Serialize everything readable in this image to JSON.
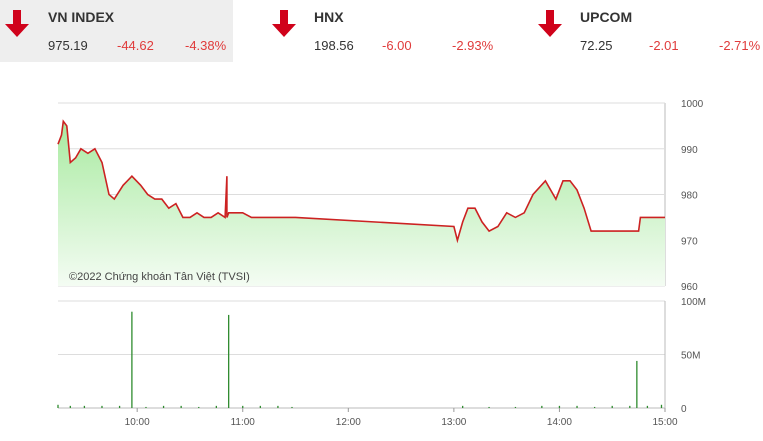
{
  "tickers": [
    {
      "name": "VN INDEX",
      "value": "975.19",
      "change": "-44.62",
      "percent": "-4.38%",
      "direction": "down",
      "active": true
    },
    {
      "name": "HNX",
      "value": "198.56",
      "change": "-6.00",
      "percent": "-2.93%",
      "direction": "down",
      "active": false
    },
    {
      "name": "UPCOM",
      "value": "72.25",
      "change": "-2.01",
      "percent": "-2.71%",
      "direction": "down",
      "active": false
    }
  ],
  "colors": {
    "down": "#d0021b",
    "line": "#cc2222",
    "fill_top": "#a8eaa0",
    "fill_bottom": "#f4fcf3",
    "volume": "#2e8b2e",
    "grid": "#dddddd"
  },
  "chart_data": [
    {
      "type": "area",
      "credit": "©2022 Chứng khoán Tân Việt (TVSI)",
      "ylim": [
        960,
        1000
      ],
      "yticks": [
        1000,
        990,
        980,
        970,
        960
      ],
      "x": [
        "09:15",
        "09:17",
        "09:18",
        "09:20",
        "09:22",
        "09:25",
        "09:28",
        "09:32",
        "09:36",
        "09:40",
        "09:44",
        "09:47",
        "09:52",
        "09:57",
        "10:02",
        "10:06",
        "10:10",
        "10:14",
        "10:18",
        "10:22",
        "10:26",
        "10:30",
        "10:34",
        "10:38",
        "10:42",
        "10:46",
        "10:50",
        "10:51",
        "10:51",
        "10:52",
        "10:55",
        "11:00",
        "11:05",
        "11:10",
        "11:20",
        "11:30",
        "13:00",
        "13:02",
        "13:05",
        "13:08",
        "13:12",
        "13:16",
        "13:20",
        "13:25",
        "13:30",
        "13:35",
        "13:40",
        "13:45",
        "13:52",
        "13:58",
        "14:02",
        "14:06",
        "14:10",
        "14:14",
        "14:18",
        "14:22",
        "14:26",
        "14:30",
        "14:35",
        "14:45",
        "14:46",
        "14:55",
        "15:00"
      ],
      "y": [
        991,
        993,
        996,
        995,
        987,
        988,
        990,
        989,
        990,
        987,
        980,
        979,
        982,
        984,
        982,
        980,
        979,
        979,
        977,
        978,
        975,
        975,
        976,
        975,
        975,
        976,
        975,
        984,
        975,
        976,
        976,
        976,
        975,
        975,
        975,
        975,
        973,
        970,
        974,
        977,
        977,
        974,
        972,
        973,
        976,
        975,
        976,
        980,
        983,
        979,
        983,
        983,
        981,
        977,
        972,
        972,
        972,
        972,
        972,
        972,
        975,
        975,
        975
      ]
    },
    {
      "type": "bar",
      "ylim": [
        0,
        100
      ],
      "yticks": [
        "100M",
        "50M",
        "0"
      ],
      "xticks": [
        "10:00",
        "11:00",
        "12:00",
        "13:00",
        "14:00",
        "15:00"
      ],
      "x": [
        "09:15",
        "09:22",
        "09:30",
        "09:40",
        "09:50",
        "09:57",
        "10:05",
        "10:15",
        "10:25",
        "10:35",
        "10:45",
        "10:52",
        "11:00",
        "11:10",
        "11:20",
        "11:28",
        "13:05",
        "13:20",
        "13:35",
        "13:50",
        "14:00",
        "14:10",
        "14:20",
        "14:30",
        "14:40",
        "14:44",
        "14:50",
        "14:58"
      ],
      "values": [
        3,
        2,
        2,
        2,
        2,
        90,
        1,
        2,
        2,
        1,
        2,
        87,
        2,
        2,
        2,
        1,
        2,
        1,
        1,
        2,
        2,
        2,
        1,
        2,
        2,
        44,
        2,
        3
      ]
    }
  ]
}
